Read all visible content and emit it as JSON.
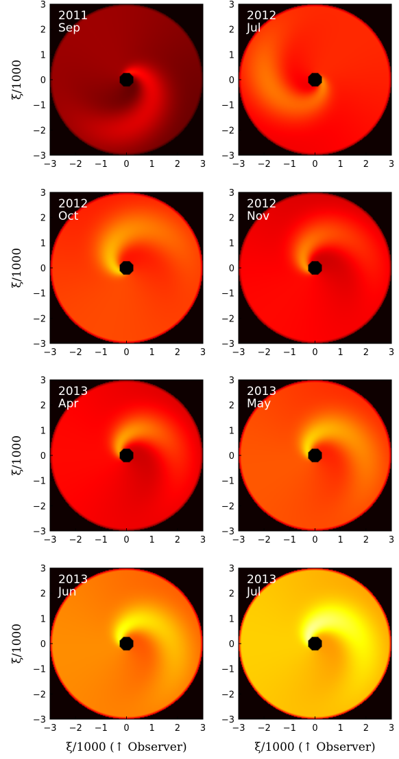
{
  "chart_data": [
    {
      "type": "heatmap",
      "label_year": "2011",
      "label_month": "Sep",
      "xlim": [
        -3,
        3
      ],
      "ylim": [
        -3,
        3
      ],
      "xticks": [
        -3,
        -2,
        -1,
        0,
        1,
        2,
        3
      ],
      "yticks": [
        3,
        2,
        1,
        0,
        -1,
        -2,
        -3
      ],
      "ylabel": "ξ/1000",
      "xlabel": "",
      "background_intensity": 0.15,
      "peak_angle_deg": 125,
      "spiral_phase_deg": 60
    },
    {
      "type": "heatmap",
      "label_year": "2012",
      "label_month": "Jul",
      "xlim": [
        -3,
        3
      ],
      "ylim": [
        -3,
        3
      ],
      "xticks": [
        -3,
        -2,
        -1,
        0,
        1,
        2,
        3
      ],
      "yticks": [
        3,
        2,
        1,
        0,
        -1,
        -2,
        -3
      ],
      "ylabel": "",
      "xlabel": "",
      "background_intensity": 0.35,
      "peak_angle_deg": 50,
      "spiral_phase_deg": 330
    },
    {
      "type": "heatmap",
      "label_year": "2012",
      "label_month": "Oct",
      "xlim": [
        -3,
        3
      ],
      "ylim": [
        -3,
        3
      ],
      "xticks": [
        -3,
        -2,
        -1,
        0,
        1,
        2,
        3
      ],
      "yticks": [
        3,
        2,
        1,
        0,
        -1,
        -2,
        -3
      ],
      "ylabel": "ξ/1000",
      "xlabel": "",
      "background_intensity": 0.4,
      "peak_angle_deg": 250,
      "spiral_phase_deg": 200
    },
    {
      "type": "heatmap",
      "label_year": "2012",
      "label_month": "Nov",
      "xlim": [
        -3,
        3
      ],
      "ylim": [
        -3,
        3
      ],
      "xticks": [
        -3,
        -2,
        -1,
        0,
        1,
        2,
        3
      ],
      "yticks": [
        3,
        2,
        1,
        0,
        -1,
        -2,
        -3
      ],
      "ylabel": "",
      "xlabel": "",
      "background_intensity": 0.3,
      "peak_angle_deg": 225,
      "spiral_phase_deg": 180
    },
    {
      "type": "heatmap",
      "label_year": "2013",
      "label_month": "Apr",
      "xlim": [
        -3,
        3
      ],
      "ylim": [
        -3,
        3
      ],
      "xticks": [
        -3,
        -2,
        -1,
        0,
        1,
        2,
        3
      ],
      "yticks": [
        3,
        2,
        1,
        0,
        -1,
        -2,
        -3
      ],
      "ylabel": "ξ/1000",
      "xlabel": "",
      "background_intensity": 0.3,
      "peak_angle_deg": 180,
      "spiral_phase_deg": 150
    },
    {
      "type": "heatmap",
      "label_year": "2013",
      "label_month": "May",
      "xlim": [
        -3,
        3
      ],
      "ylim": [
        -3,
        3
      ],
      "xticks": [
        -3,
        -2,
        -1,
        0,
        1,
        2,
        3
      ],
      "yticks": [
        3,
        2,
        1,
        0,
        -1,
        -2,
        -3
      ],
      "ylabel": "",
      "xlabel": "",
      "background_intensity": 0.42,
      "peak_angle_deg": 200,
      "spiral_phase_deg": 150
    },
    {
      "type": "heatmap",
      "label_year": "2013",
      "label_month": "Jun",
      "xlim": [
        -3,
        3
      ],
      "ylim": [
        -3,
        3
      ],
      "xticks": [
        -3,
        -2,
        -1,
        0,
        1,
        2,
        3
      ],
      "yticks": [
        3,
        2,
        1,
        0,
        -1,
        -2,
        -3
      ],
      "ylabel": "ξ/1000",
      "xlabel": "ξ/1000 (↑ Observer)",
      "background_intensity": 0.5,
      "peak_angle_deg": 190,
      "spiral_phase_deg": 140
    },
    {
      "type": "heatmap",
      "label_year": "2013",
      "label_month": "Jul",
      "xlim": [
        -3,
        3
      ],
      "ylim": [
        -3,
        3
      ],
      "xticks": [
        -3,
        -2,
        -1,
        0,
        1,
        2,
        3
      ],
      "yticks": [
        3,
        2,
        1,
        0,
        -1,
        -2,
        -3
      ],
      "ylabel": "",
      "xlabel": "ξ/1000 (↑ Observer)",
      "background_intensity": 0.6,
      "peak_angle_deg": 180,
      "spiral_phase_deg": 140
    }
  ],
  "colors": {
    "disk_black": "#0a0000",
    "dark_red": "#5a0000",
    "red": "#e60000",
    "orange": "#ff7a00",
    "yellow": "#ffff60",
    "white": "#ffffff"
  }
}
